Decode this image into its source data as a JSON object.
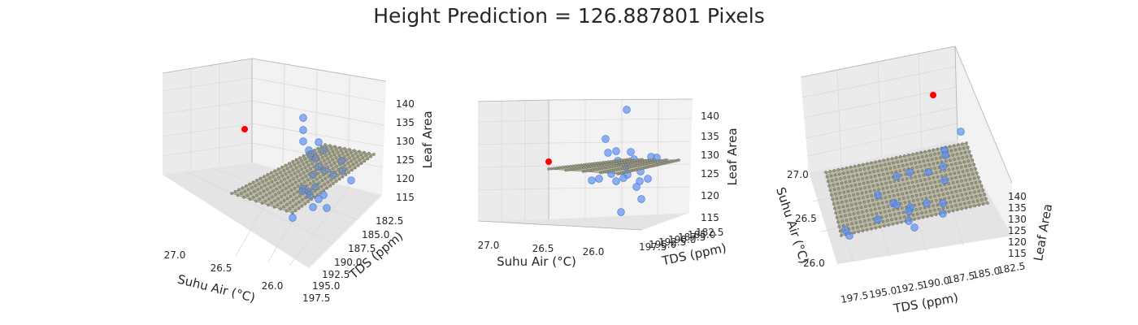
{
  "chart_data": {
    "title": "Height Prediction = 126.887801 Pixels",
    "type": "scatter3d",
    "panels": [
      {
        "xlabel": "Suhu Air (°C)",
        "ylabel": "TDS (ppm)",
        "zlabel": "Leaf Area",
        "x_ticks": [
          "27.0",
          "26.5",
          "26.0"
        ],
        "y_ticks": [
          "182.5",
          "185.0",
          "187.5",
          "190.0",
          "192.5",
          "195.0",
          "197.5"
        ],
        "z_ticks": [
          "115",
          "120",
          "125",
          "130",
          "135",
          "140"
        ]
      },
      {
        "xlabel": "Suhu Air (°C)",
        "ylabel": "TDS (ppm)",
        "zlabel": "Leaf Area",
        "x_ticks": [
          "27.0",
          "26.5",
          "26.0"
        ],
        "y_ticks": [
          "182.5",
          "185.0",
          "187.5",
          "190.0",
          "192.5",
          "195.0",
          "197.5"
        ],
        "z_ticks": [
          "115",
          "120",
          "125",
          "130",
          "135",
          "140"
        ]
      },
      {
        "xlabel": "Suhu Air (°C)",
        "ylabel": "TDS (ppm)",
        "zlabel": "Leaf Area",
        "x_ticks": [
          "27.0",
          "26.5",
          "26.0"
        ],
        "y_ticks": [
          "197.5",
          "195.0",
          "192.5",
          "190.0",
          "187.5",
          "185.0",
          "182.5"
        ],
        "z_ticks": [
          "115",
          "120",
          "125",
          "130",
          "135",
          "140"
        ]
      }
    ],
    "colors": {
      "data_points": "#5a8ff0",
      "prediction_point": "#ff0000",
      "plane": "#b9b8a4"
    }
  }
}
